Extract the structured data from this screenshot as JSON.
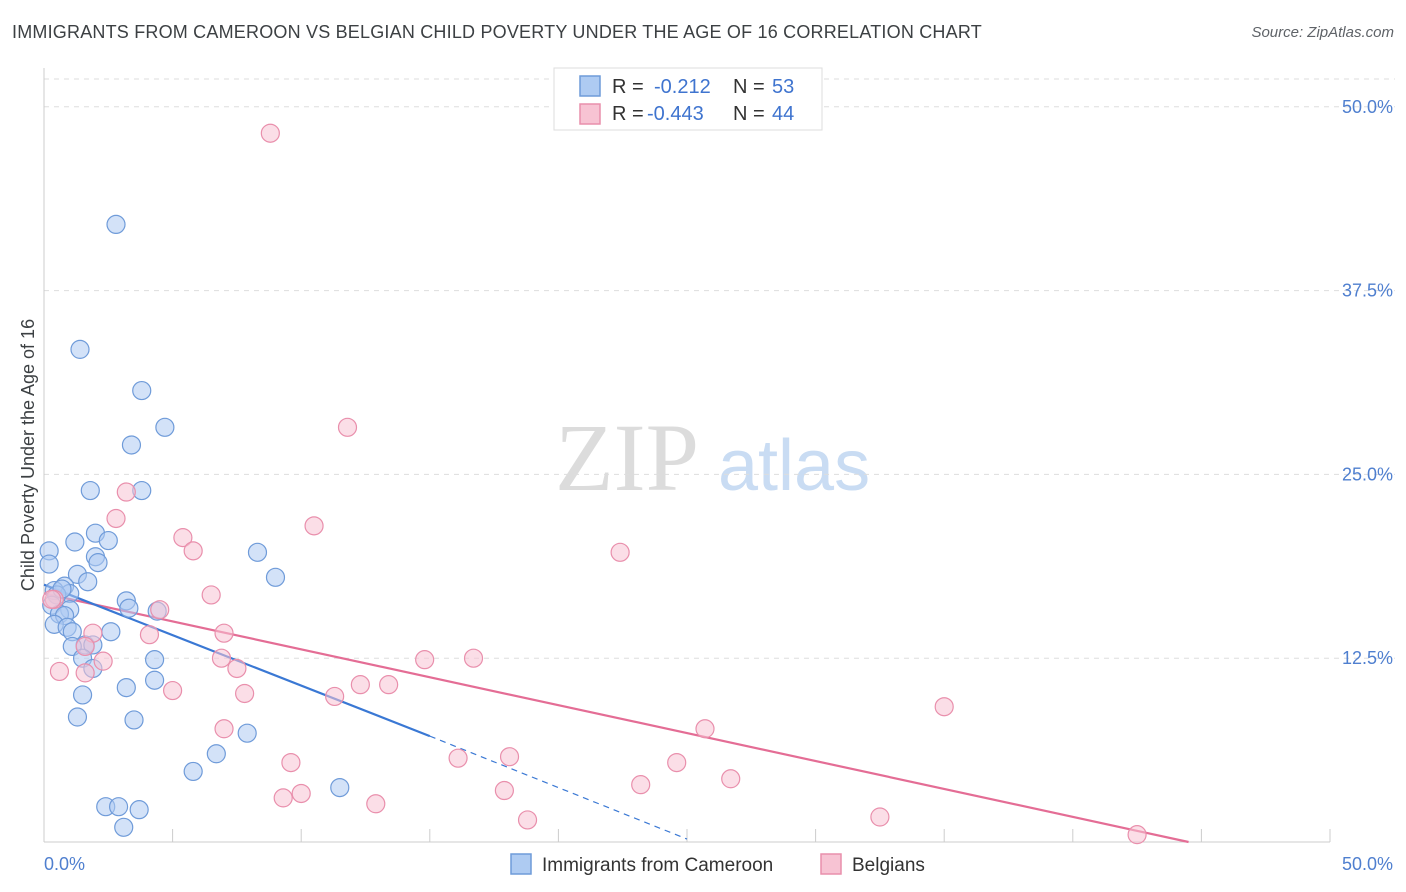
{
  "header": {
    "title": "IMMIGRANTS FROM CAMEROON VS BELGIAN CHILD POVERTY UNDER THE AGE OF 16 CORRELATION CHART",
    "source": "Source: ZipAtlas.com"
  },
  "watermark": {
    "zip": "ZIP",
    "atlas": "atlas"
  },
  "colors": {
    "blue_fill": "#aecbf2",
    "blue_stroke": "#6f9bd9",
    "blue_line": "#3a78d4",
    "pink_fill": "#f7c3d3",
    "pink_stroke": "#e98fac",
    "pink_line": "#e46d95",
    "tick_text": "#4f7fcf",
    "grid": "#dddddd"
  },
  "legend": {
    "rows": [
      {
        "r_label": "R =",
        "r_value": "-0.212",
        "n_label": "N =",
        "n_value": "53"
      },
      {
        "r_label": "R =",
        "r_value": "-0.443",
        "n_label": "N =",
        "n_value": "44"
      }
    ]
  },
  "bottom_legend": [
    "Immigrants from Cameroon",
    "Belgians"
  ],
  "chart_data": {
    "type": "scatter",
    "title": "IMMIGRANTS FROM CAMEROON VS BELGIAN CHILD POVERTY UNDER THE AGE OF 16 CORRELATION CHART",
    "xlabel": "",
    "ylabel": "Child Poverty Under the Age of 16",
    "xlim": [
      0,
      50
    ],
    "ylim": [
      0,
      52.5
    ],
    "x_tick_labels": [
      "0.0%",
      "50.0%"
    ],
    "y_ticks": [
      12.5,
      25.0,
      37.5,
      50.0
    ],
    "y_tick_labels": [
      "12.5%",
      "25.0%",
      "37.5%",
      "50.0%"
    ],
    "grid": true,
    "series": [
      {
        "name": "Immigrants from Cameroon",
        "color": "#6f9bd9",
        "r": -0.212,
        "n": 53,
        "points": [
          [
            2.8,
            42.0
          ],
          [
            1.4,
            33.5
          ],
          [
            3.8,
            30.7
          ],
          [
            4.7,
            28.2
          ],
          [
            3.4,
            27.0
          ],
          [
            1.8,
            23.9
          ],
          [
            3.8,
            23.9
          ],
          [
            2.0,
            21.0
          ],
          [
            1.2,
            20.4
          ],
          [
            2.5,
            20.5
          ],
          [
            0.2,
            19.8
          ],
          [
            2.0,
            19.4
          ],
          [
            2.1,
            19.0
          ],
          [
            0.2,
            18.9
          ],
          [
            8.3,
            19.7
          ],
          [
            1.3,
            18.2
          ],
          [
            9.0,
            18.0
          ],
          [
            1.7,
            17.7
          ],
          [
            0.8,
            17.4
          ],
          [
            0.4,
            17.1
          ],
          [
            1.0,
            16.9
          ],
          [
            0.5,
            16.8
          ],
          [
            3.2,
            16.4
          ],
          [
            0.3,
            16.1
          ],
          [
            3.3,
            15.9
          ],
          [
            1.0,
            15.8
          ],
          [
            0.6,
            15.5
          ],
          [
            4.4,
            15.7
          ],
          [
            0.8,
            15.4
          ],
          [
            0.4,
            14.8
          ],
          [
            0.9,
            14.6
          ],
          [
            1.1,
            14.3
          ],
          [
            2.6,
            14.3
          ],
          [
            1.6,
            13.4
          ],
          [
            1.9,
            13.4
          ],
          [
            1.1,
            13.3
          ],
          [
            1.5,
            12.5
          ],
          [
            4.3,
            12.4
          ],
          [
            1.9,
            11.8
          ],
          [
            4.3,
            11.0
          ],
          [
            3.2,
            10.5
          ],
          [
            1.5,
            10.0
          ],
          [
            1.3,
            8.5
          ],
          [
            3.5,
            8.3
          ],
          [
            7.9,
            7.4
          ],
          [
            6.7,
            6.0
          ],
          [
            5.8,
            4.8
          ],
          [
            11.5,
            3.7
          ],
          [
            2.4,
            2.4
          ],
          [
            2.9,
            2.4
          ],
          [
            3.7,
            2.2
          ],
          [
            3.1,
            1.0
          ],
          [
            0.7,
            17.2
          ]
        ]
      },
      {
        "name": "Belgians",
        "color": "#e98fac",
        "r": -0.443,
        "n": 44,
        "points": [
          [
            8.8,
            48.2
          ],
          [
            11.8,
            28.2
          ],
          [
            3.2,
            23.8
          ],
          [
            2.8,
            22.0
          ],
          [
            10.5,
            21.5
          ],
          [
            5.4,
            20.7
          ],
          [
            5.8,
            19.8
          ],
          [
            22.4,
            19.7
          ],
          [
            6.5,
            16.8
          ],
          [
            0.4,
            16.5
          ],
          [
            4.5,
            15.8
          ],
          [
            7.0,
            14.2
          ],
          [
            4.1,
            14.1
          ],
          [
            1.9,
            14.2
          ],
          [
            1.6,
            13.3
          ],
          [
            6.9,
            12.5
          ],
          [
            14.8,
            12.4
          ],
          [
            16.7,
            12.5
          ],
          [
            7.5,
            11.8
          ],
          [
            2.3,
            12.3
          ],
          [
            0.6,
            11.6
          ],
          [
            1.6,
            11.5
          ],
          [
            12.3,
            10.7
          ],
          [
            13.4,
            10.7
          ],
          [
            5.0,
            10.3
          ],
          [
            7.8,
            10.1
          ],
          [
            11.3,
            9.9
          ],
          [
            35.0,
            9.2
          ],
          [
            7.0,
            7.7
          ],
          [
            25.7,
            7.7
          ],
          [
            18.1,
            5.8
          ],
          [
            16.1,
            5.7
          ],
          [
            9.6,
            5.4
          ],
          [
            24.6,
            5.4
          ],
          [
            26.7,
            4.3
          ],
          [
            23.2,
            3.9
          ],
          [
            17.9,
            3.5
          ],
          [
            10.0,
            3.3
          ],
          [
            9.3,
            3.0
          ],
          [
            12.9,
            2.6
          ],
          [
            18.8,
            1.5
          ],
          [
            32.5,
            1.7
          ],
          [
            42.5,
            0.5
          ],
          [
            0.3,
            16.5
          ]
        ]
      }
    ],
    "trend_lines": [
      {
        "series": "Immigrants from Cameroon",
        "solid": [
          [
            0,
            17.5
          ],
          [
            15,
            7.2
          ]
        ],
        "dashed": [
          [
            15,
            7.2
          ],
          [
            25,
            0.2
          ]
        ]
      },
      {
        "series": "Belgians",
        "solid": [
          [
            0,
            16.9
          ],
          [
            44.5,
            0
          ]
        ]
      }
    ]
  }
}
